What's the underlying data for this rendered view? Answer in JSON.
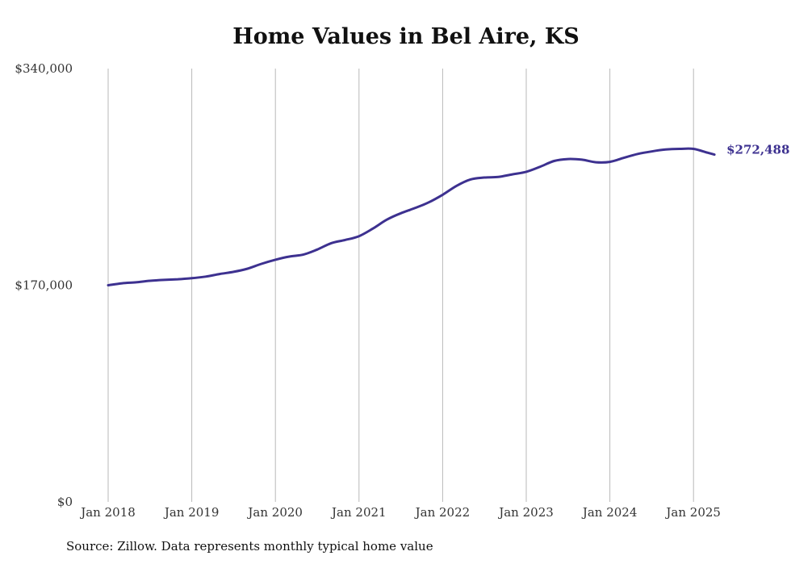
{
  "chart_data": {
    "type": "line",
    "title": "Home Values in Bel Aire, KS",
    "xlabel": "",
    "ylabel": "",
    "ylim": [
      0,
      340000
    ],
    "y_ticks": [
      {
        "value": 0,
        "label": "$0"
      },
      {
        "value": 170000,
        "label": "$170,000"
      },
      {
        "value": 340000,
        "label": "$340,000"
      }
    ],
    "x_ticks": [
      "Jan 2018",
      "Jan 2019",
      "Jan 2020",
      "Jan 2021",
      "Jan 2022",
      "Jan 2023",
      "Jan 2024",
      "Jan 2025"
    ],
    "grid": "vertical",
    "line_color": "#3d3190",
    "end_label": "$272,488",
    "series": [
      {
        "values": [
          [
            "2018-01",
            170000
          ],
          [
            "2018-03",
            171500
          ],
          [
            "2018-05",
            172300
          ],
          [
            "2018-07",
            173500
          ],
          [
            "2018-09",
            174200
          ],
          [
            "2018-11",
            174700
          ],
          [
            "2019-01",
            175500
          ],
          [
            "2019-03",
            176800
          ],
          [
            "2019-05",
            178800
          ],
          [
            "2019-07",
            180500
          ],
          [
            "2019-09",
            183000
          ],
          [
            "2019-11",
            186800
          ],
          [
            "2020-01",
            190000
          ],
          [
            "2020-03",
            192500
          ],
          [
            "2020-05",
            194000
          ],
          [
            "2020-07",
            198000
          ],
          [
            "2020-09",
            203000
          ],
          [
            "2020-11",
            205500
          ],
          [
            "2021-01",
            208500
          ],
          [
            "2021-03",
            214500
          ],
          [
            "2021-05",
            221500
          ],
          [
            "2021-07",
            226500
          ],
          [
            "2021-09",
            230500
          ],
          [
            "2021-11",
            235000
          ],
          [
            "2022-01",
            241000
          ],
          [
            "2022-03",
            248000
          ],
          [
            "2022-05",
            253000
          ],
          [
            "2022-07",
            254500
          ],
          [
            "2022-09",
            255000
          ],
          [
            "2022-11",
            257000
          ],
          [
            "2023-01",
            259000
          ],
          [
            "2023-03",
            263000
          ],
          [
            "2023-05",
            267500
          ],
          [
            "2023-07",
            269000
          ],
          [
            "2023-09",
            268500
          ],
          [
            "2023-11",
            266500
          ],
          [
            "2024-01",
            266800
          ],
          [
            "2024-03",
            270000
          ],
          [
            "2024-05",
            273000
          ],
          [
            "2024-07",
            275000
          ],
          [
            "2024-09",
            276500
          ],
          [
            "2024-11",
            277000
          ],
          [
            "2025-01",
            277000
          ],
          [
            "2025-03",
            274000
          ],
          [
            "2025-04",
            272488
          ]
        ]
      }
    ]
  },
  "source": "Source: Zillow. Data represents monthly typical home value"
}
